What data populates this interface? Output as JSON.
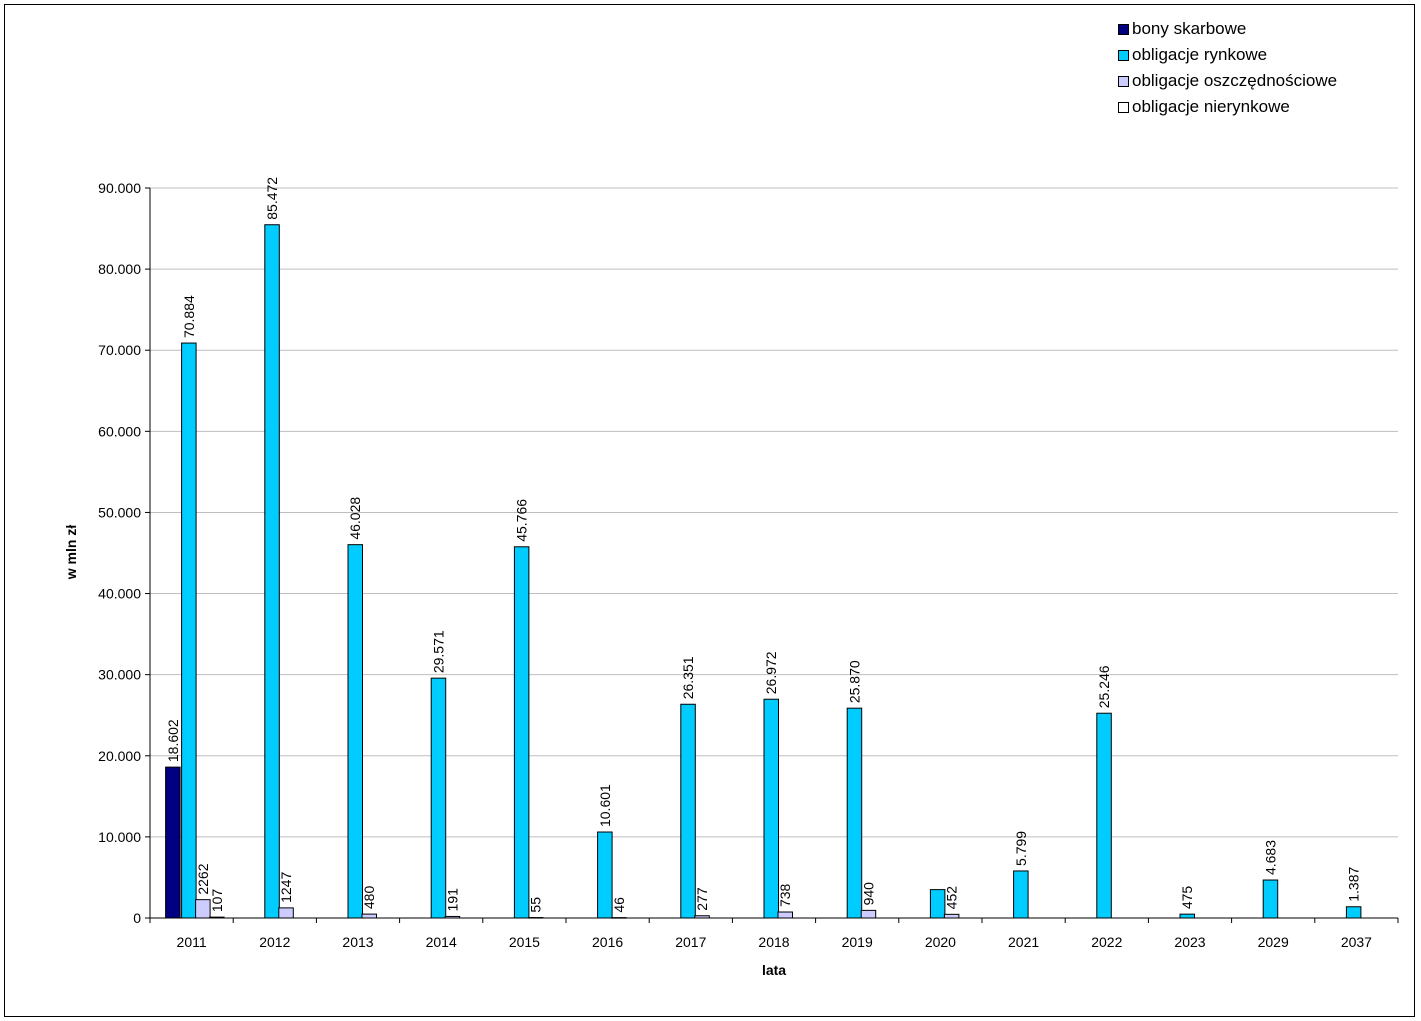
{
  "chart_data": {
    "type": "bar",
    "xlabel": "lata",
    "ylabel": "w mln zł",
    "ylim": [
      0,
      90000
    ],
    "yticks": [
      0,
      10000,
      20000,
      30000,
      40000,
      50000,
      60000,
      70000,
      80000,
      90000
    ],
    "ytick_labels": [
      "0",
      "10.000",
      "20.000",
      "30.000",
      "40.000",
      "50.000",
      "60.000",
      "70.000",
      "80.000",
      "90.000"
    ],
    "grid": true,
    "legend_position": "top-right",
    "categories": [
      "2011",
      "2012",
      "2013",
      "2014",
      "2015",
      "2016",
      "2017",
      "2018",
      "2019",
      "2020",
      "2021",
      "2022",
      "2023",
      "2029",
      "2037"
    ],
    "series": [
      {
        "name": "bony skarbowe",
        "color": "#000080",
        "values": [
          18602,
          null,
          null,
          null,
          null,
          null,
          null,
          null,
          null,
          null,
          null,
          null,
          null,
          null,
          null
        ],
        "labels": [
          "18.602",
          "",
          "",
          "",
          "",
          "",
          "",
          "",
          "",
          "",
          "",
          "",
          "",
          "",
          ""
        ]
      },
      {
        "name": "obligacje rynkowe",
        "color": "#00CCFF",
        "values": [
          70884,
          85472,
          46028,
          29571,
          45766,
          10601,
          26351,
          26972,
          25870,
          3500,
          5799,
          25246,
          475,
          4683,
          1387
        ],
        "labels": [
          "70.884",
          "85.472",
          "46.028",
          "29.571",
          "45.766",
          "10.601",
          "26.351",
          "26.972",
          "25.870",
          "",
          "5.799",
          "25.246",
          "475",
          "4.683",
          "1.387"
        ]
      },
      {
        "name": "obligacje oszczędnościowe",
        "color": "#CCCCFF",
        "values": [
          2262,
          1247,
          480,
          191,
          55,
          46,
          277,
          738,
          940,
          452,
          null,
          null,
          null,
          null,
          null
        ],
        "labels": [
          "2262",
          "1247",
          "480",
          "191",
          "55",
          "46",
          "277",
          "738",
          "940",
          "452",
          "",
          "",
          "",
          "",
          ""
        ]
      },
      {
        "name": "obligacje nierynkowe",
        "color": "#FFFFFF",
        "values": [
          107,
          null,
          null,
          null,
          null,
          null,
          null,
          null,
          null,
          null,
          null,
          null,
          null,
          null,
          null
        ],
        "labels": [
          "107",
          "",
          "",
          "",
          "",
          "",
          "",
          "",
          "",
          "",
          "",
          "",
          "",
          "",
          ""
        ]
      }
    ]
  }
}
